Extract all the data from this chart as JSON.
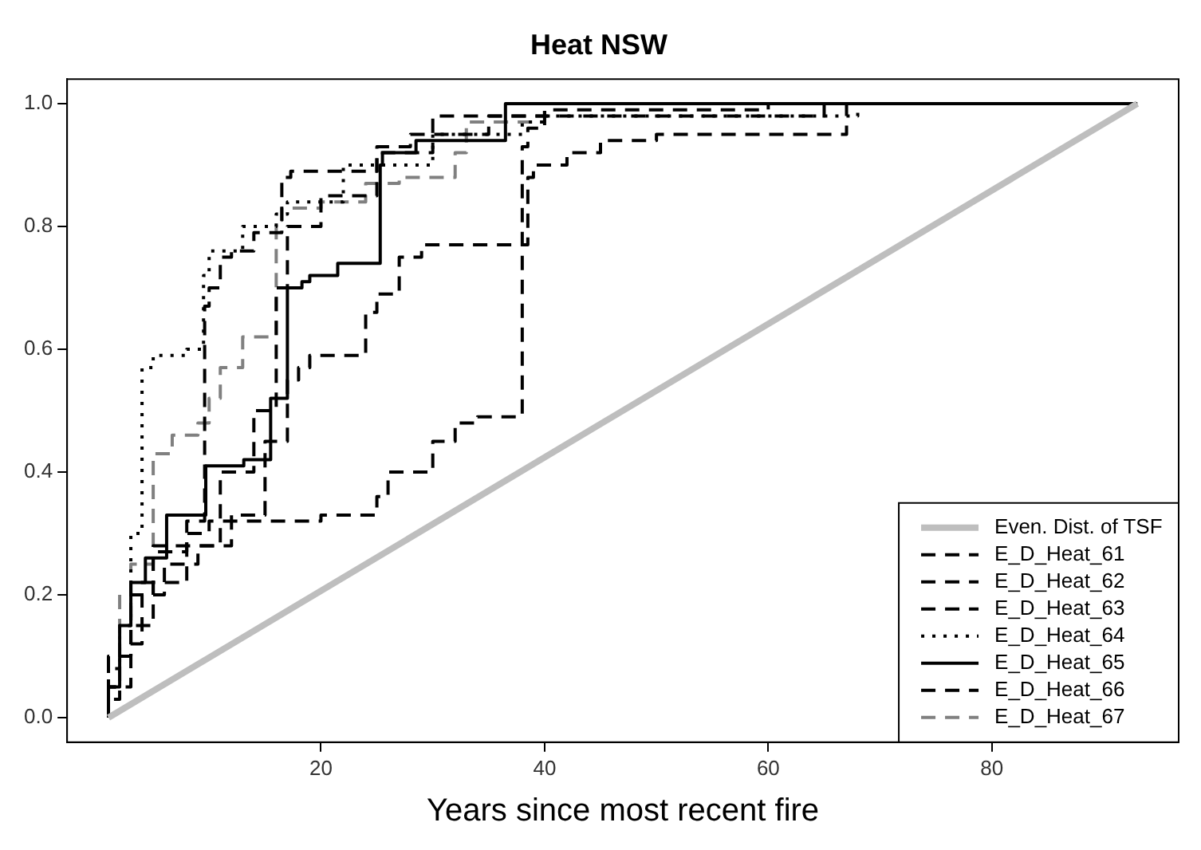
{
  "chart_data": {
    "type": "step",
    "title": "Heat NSW",
    "xlabel": "Years since most recent fire",
    "xlim": [
      -2.7,
      96.7
    ],
    "xticks": [
      20,
      40,
      60,
      80
    ],
    "ylim": [
      -0.04,
      1.04
    ],
    "yticks": [
      {
        "value": 0,
        "label": "0.0"
      },
      {
        "value": 0.2,
        "label": "0.2"
      },
      {
        "value": 0.4,
        "label": "0.4"
      },
      {
        "value": 0.6,
        "label": "0.6"
      },
      {
        "value": 0.8,
        "label": "0.8"
      },
      {
        "value": 1,
        "label": "1.0"
      }
    ],
    "grid": false,
    "legend": "bottom right",
    "marker": "none",
    "series": [
      {
        "name": "Even. Dist. of TSF",
        "type": "line",
        "color": "#bebebe",
        "line_style": "solid",
        "x": [
          1,
          93
        ],
        "values": [
          0,
          1
        ]
      },
      {
        "name": "E_D_Heat_61",
        "color": "#000000",
        "line_style": "dashed",
        "x": [
          1,
          3,
          5,
          8,
          12,
          15,
          17,
          18,
          19,
          24,
          25,
          27,
          29,
          32,
          38.5,
          39,
          42,
          45,
          50,
          67,
          67.5,
          93
        ],
        "values": [
          0,
          0.05,
          0.15,
          0.22,
          0.28,
          0.33,
          0.45,
          0.55,
          0.57,
          0.59,
          0.66,
          0.69,
          0.75,
          0.77,
          0.77,
          0.88,
          0.9,
          0.92,
          0.94,
          0.95,
          1,
          1
        ]
      },
      {
        "name": "E_D_Heat_62",
        "color": "#000000",
        "line_style": "dashed",
        "x": [
          1,
          3,
          5,
          8,
          9.6,
          10,
          11,
          12,
          14,
          16.5,
          17.3,
          25,
          28,
          35,
          40,
          60,
          93
        ],
        "values": [
          0,
          0.1,
          0.2,
          0.28,
          0.32,
          0.67,
          0.7,
          0.75,
          0.76,
          0.79,
          0.88,
          0.89,
          0.93,
          0.95,
          0.98,
          0.99,
          1
        ]
      },
      {
        "name": "E_D_Heat_63",
        "color": "#000000",
        "line_style": "dashed",
        "x": [
          1,
          2,
          3,
          5,
          8,
          10,
          12,
          20,
          25,
          26,
          30,
          32,
          34,
          38,
          38.5,
          40,
          65,
          67,
          93
        ],
        "values": [
          0,
          0.05,
          0.1,
          0.22,
          0.27,
          0.3,
          0.32,
          0.32,
          0.33,
          0.36,
          0.4,
          0.45,
          0.48,
          0.49,
          0.93,
          0.96,
          0.98,
          1,
          1
        ]
      },
      {
        "name": "E_D_Heat_64",
        "color": "#000000",
        "line_style": "dotted",
        "x": [
          1,
          2,
          3,
          4,
          5,
          8,
          9.5,
          10,
          13,
          16,
          17,
          22,
          30,
          38,
          40,
          68,
          93
        ],
        "values": [
          0,
          0.08,
          0.15,
          0.3,
          0.57,
          0.59,
          0.6,
          0.72,
          0.76,
          0.8,
          0.82,
          0.84,
          0.9,
          0.95,
          0.97,
          0.98,
          1
        ]
      },
      {
        "name": "E_D_Heat_65",
        "color": "#000000",
        "line_style": "solid",
        "x": [
          1,
          2,
          3,
          4.3,
          6.2,
          9.7,
          13.1,
          15.5,
          17,
          18.3,
          19,
          21.5,
          22.5,
          25.3,
          25.5,
          28.5,
          31,
          36.5,
          39.7,
          93
        ],
        "values": [
          0,
          0.05,
          0.15,
          0.22,
          0.26,
          0.33,
          0.41,
          0.42,
          0.52,
          0.7,
          0.71,
          0.72,
          0.74,
          0.74,
          0.9,
          0.92,
          0.94,
          0.94,
          1,
          1
        ]
      },
      {
        "name": "E_D_Heat_66",
        "color": "#000000",
        "line_style": "dashed",
        "x": [
          1,
          2,
          4,
          6,
          9,
          11,
          14,
          16,
          17,
          20,
          25,
          30,
          40,
          93
        ],
        "values": [
          0,
          0.03,
          0.12,
          0.2,
          0.25,
          0.28,
          0.4,
          0.5,
          0.7,
          0.8,
          0.85,
          0.92,
          0.98,
          1
        ]
      },
      {
        "name": "E_D_Heat_67",
        "color": "#808080",
        "line_style": "dashed",
        "x": [
          1,
          2,
          3,
          5,
          6.7,
          9,
          10,
          11,
          13,
          16,
          16.5,
          20,
          24,
          27,
          32,
          33,
          40,
          93
        ],
        "values": [
          0,
          0.1,
          0.2,
          0.25,
          0.43,
          0.46,
          0.48,
          0.52,
          0.57,
          0.62,
          0.81,
          0.83,
          0.84,
          0.87,
          0.88,
          0.92,
          0.97,
          1
        ]
      }
    ]
  }
}
